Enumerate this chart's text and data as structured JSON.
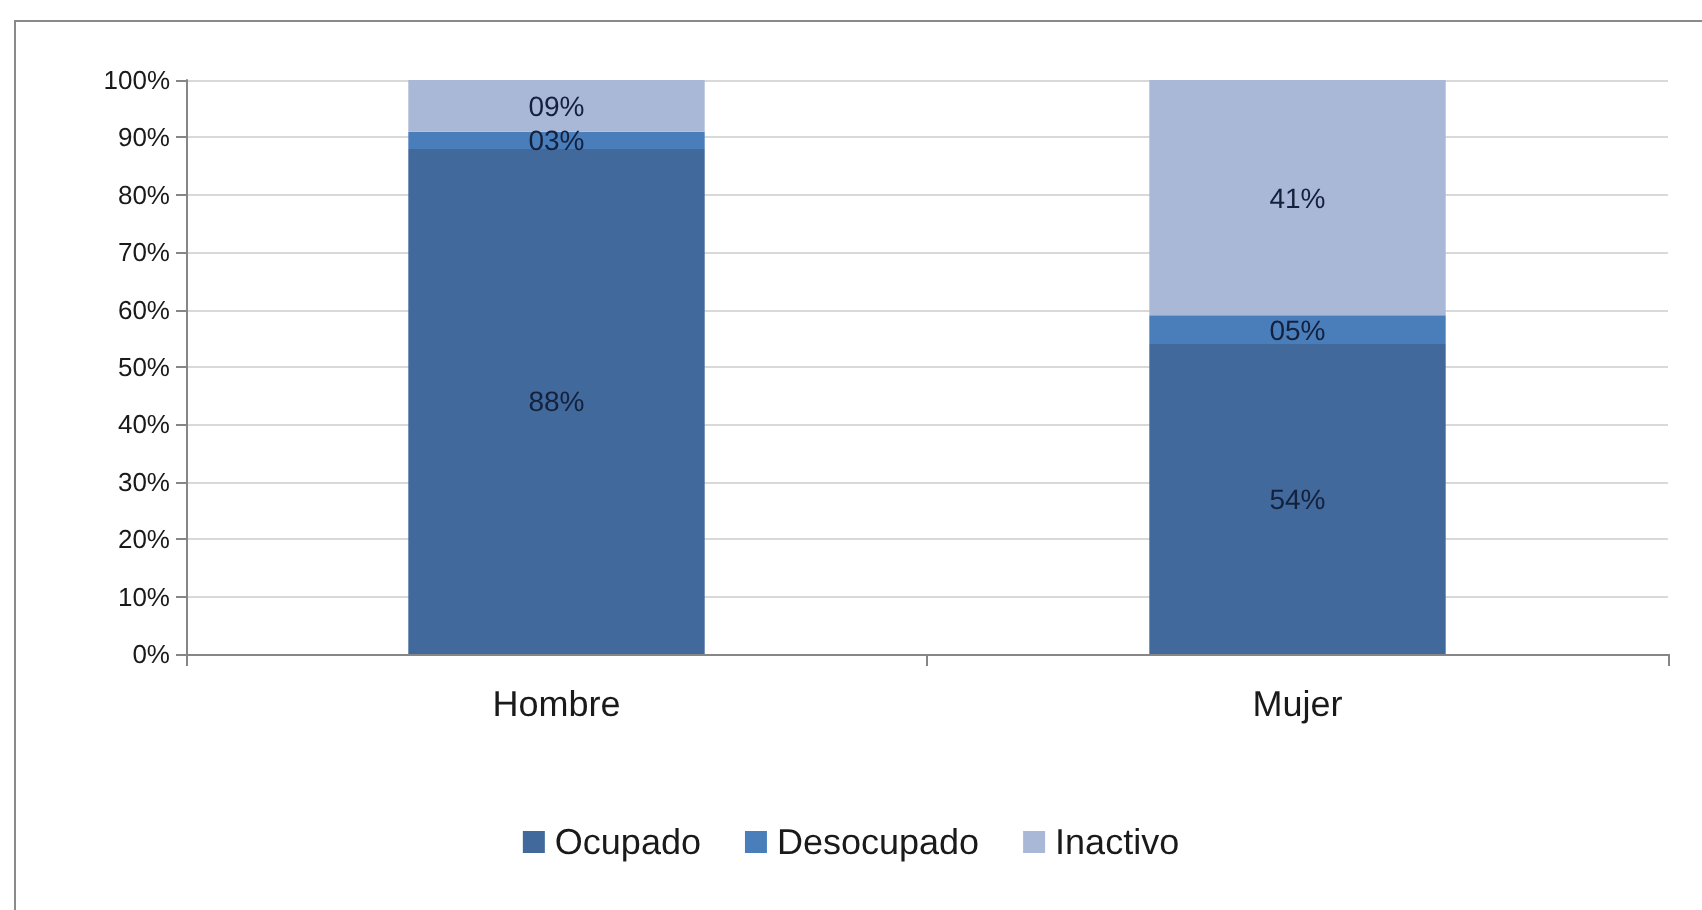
{
  "chart_data": {
    "type": "bar",
    "stacked": true,
    "categories": [
      "Hombre",
      "Mujer"
    ],
    "series": [
      {
        "name": "Ocupado",
        "color": "#41699b",
        "values": [
          88,
          54
        ],
        "value_labels": [
          "88%",
          "54%"
        ]
      },
      {
        "name": "Desocupado",
        "color": "#4a7ebb",
        "values": [
          3,
          5
        ],
        "value_labels": [
          "03%",
          "05%"
        ]
      },
      {
        "name": "Inactivo",
        "color": "#a9b8d7",
        "values": [
          9,
          41
        ],
        "value_labels": [
          "09%",
          "41%"
        ]
      }
    ],
    "ylim": [
      0,
      100
    ],
    "yticks": [
      {
        "value": 0,
        "label": "0%"
      },
      {
        "value": 10,
        "label": "10%"
      },
      {
        "value": 20,
        "label": "20%"
      },
      {
        "value": 30,
        "label": "30%"
      },
      {
        "value": 40,
        "label": "40%"
      },
      {
        "value": 50,
        "label": "50%"
      },
      {
        "value": 60,
        "label": "60%"
      },
      {
        "value": 70,
        "label": "70%"
      },
      {
        "value": 80,
        "label": "80%"
      },
      {
        "value": 90,
        "label": "90%"
      },
      {
        "value": 100,
        "label": "100%"
      }
    ],
    "grid": "y",
    "legend": "bottom"
  }
}
